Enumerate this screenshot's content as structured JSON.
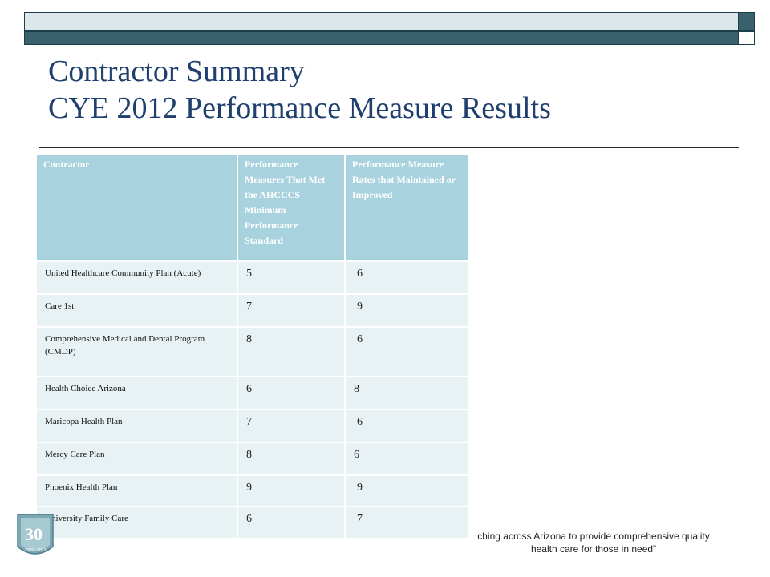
{
  "slide": {
    "title_line1": "Contractor Summary",
    "title_line2": "CYE 2012 Performance Measure Results"
  },
  "table": {
    "headers": [
      "Contractor",
      "Performance Measures That Met the AHCCCS Minimum Performance Standard",
      "Performance Measure Rates that Maintained or Improved"
    ],
    "rows": [
      {
        "contractor": "United Healthcare Community Plan (Acute)",
        "met": "5",
        "improved": "6"
      },
      {
        "contractor": "Care 1st",
        "met": "7",
        "improved": "9"
      },
      {
        "contractor": "Comprehensive Medical and Dental Program (CMDP)",
        "met": "8",
        "improved": "6"
      },
      {
        "contractor": "Health Choice Arizona",
        "met": "6",
        "improved": "8"
      },
      {
        "contractor": "Maricopa Health Plan",
        "met": "7",
        "improved": "6"
      },
      {
        "contractor": "Mercy Care Plan",
        "met": "8",
        "improved": "6"
      },
      {
        "contractor": "Phoenix Health Plan",
        "met": "9",
        "improved": "9"
      },
      {
        "contractor": "University Family Care",
        "met": "6",
        "improved": "7"
      }
    ]
  },
  "footer": {
    "line1": "ching across Arizona to provide comprehensive quality",
    "line2": "health care for those in need”"
  },
  "logo": {
    "text": "30",
    "subtext": "1982 - 2012"
  },
  "colors": {
    "title": "#1f3f6e",
    "header_bg": "#a9d2df",
    "row_bg": "#e8f1f4",
    "band": "#3a5f6d"
  }
}
